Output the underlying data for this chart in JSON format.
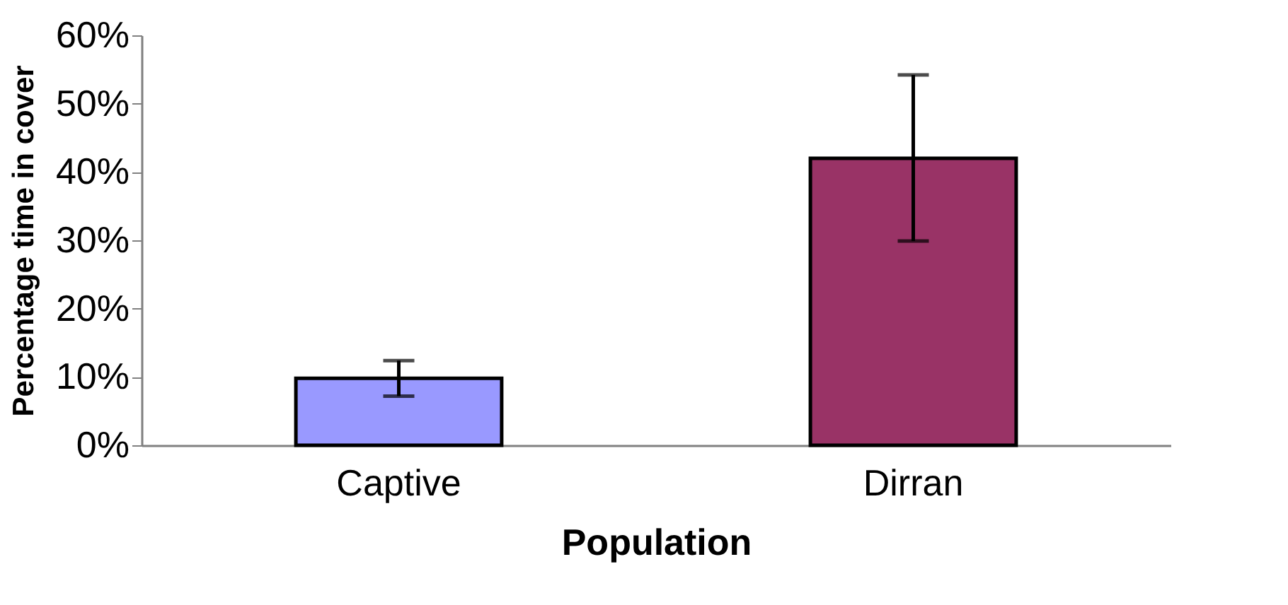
{
  "chart_data": {
    "type": "bar",
    "xlabel": "Population",
    "ylabel": "Percentage time in cover",
    "categories": [
      "Captive",
      "Dirran"
    ],
    "values": [
      9.8,
      42
    ],
    "colors": [
      "#9999ff",
      "#993366"
    ],
    "errors": [
      [
        7.2,
        12.4
      ],
      [
        29.9,
        54.2
      ]
    ],
    "ylim": [
      0,
      60
    ],
    "yticks": [
      {
        "value": 0,
        "label": "0%"
      },
      {
        "value": 10,
        "label": "10%"
      },
      {
        "value": 20,
        "label": "20%"
      },
      {
        "value": 30,
        "label": "30%"
      },
      {
        "value": 40,
        "label": "40%"
      },
      {
        "value": 50,
        "label": "50%"
      },
      {
        "value": 60,
        "label": "60%"
      }
    ],
    "grid": false,
    "legend": false
  }
}
